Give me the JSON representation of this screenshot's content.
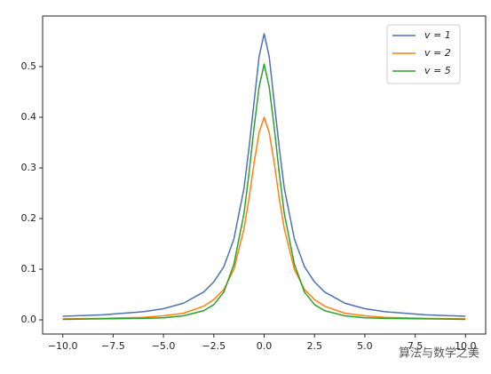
{
  "chart_data": {
    "type": "line",
    "x": [
      -10,
      -8,
      -6,
      -5,
      -4,
      -3,
      -2.5,
      -2,
      -1.5,
      -1,
      -0.75,
      -0.5,
      -0.25,
      0,
      0.25,
      0.5,
      0.75,
      1,
      1.5,
      2,
      2.5,
      3,
      4,
      5,
      6,
      8,
      10
    ],
    "series": [
      {
        "name": "v = 1",
        "color": "#4c72b0",
        "values": [
          0.007,
          0.01,
          0.016,
          0.022,
          0.033,
          0.055,
          0.075,
          0.105,
          0.16,
          0.26,
          0.34,
          0.43,
          0.52,
          0.565,
          0.52,
          0.43,
          0.34,
          0.26,
          0.16,
          0.105,
          0.075,
          0.055,
          0.033,
          0.022,
          0.016,
          0.01,
          0.007
        ]
      },
      {
        "name": "v = 2",
        "color": "#ff7f0e",
        "values": [
          0.002,
          0.003,
          0.005,
          0.008,
          0.013,
          0.027,
          0.04,
          0.06,
          0.1,
          0.18,
          0.24,
          0.31,
          0.37,
          0.4,
          0.37,
          0.31,
          0.24,
          0.18,
          0.1,
          0.06,
          0.04,
          0.027,
          0.013,
          0.008,
          0.005,
          0.003,
          0.002
        ]
      },
      {
        "name": "v = 5",
        "color": "#2ca02c",
        "values": [
          0.001,
          0.002,
          0.003,
          0.004,
          0.008,
          0.018,
          0.03,
          0.055,
          0.11,
          0.21,
          0.29,
          0.38,
          0.46,
          0.505,
          0.46,
          0.38,
          0.29,
          0.21,
          0.11,
          0.055,
          0.03,
          0.018,
          0.008,
          0.004,
          0.003,
          0.002,
          0.001
        ]
      }
    ],
    "xlim": [
      -11,
      11
    ],
    "ylim": [
      -0.028,
      0.6
    ],
    "xticks": [
      {
        "value": -10,
        "label": "−10.0"
      },
      {
        "value": -7.5,
        "label": "−7.5"
      },
      {
        "value": -5,
        "label": "−5.0"
      },
      {
        "value": -2.5,
        "label": "−2.5"
      },
      {
        "value": 0,
        "label": "0.0"
      },
      {
        "value": 2.5,
        "label": "2.5"
      },
      {
        "value": 5,
        "label": "5.0"
      },
      {
        "value": 7.5,
        "label": "7.5"
      },
      {
        "value": 10,
        "label": "10.0"
      }
    ],
    "yticks": [
      {
        "value": 0,
        "label": "0.0"
      },
      0.1,
      0.2,
      0.3,
      0.4,
      0.5
    ],
    "legend": "upper right",
    "watermark": "算法与数学之美"
  }
}
